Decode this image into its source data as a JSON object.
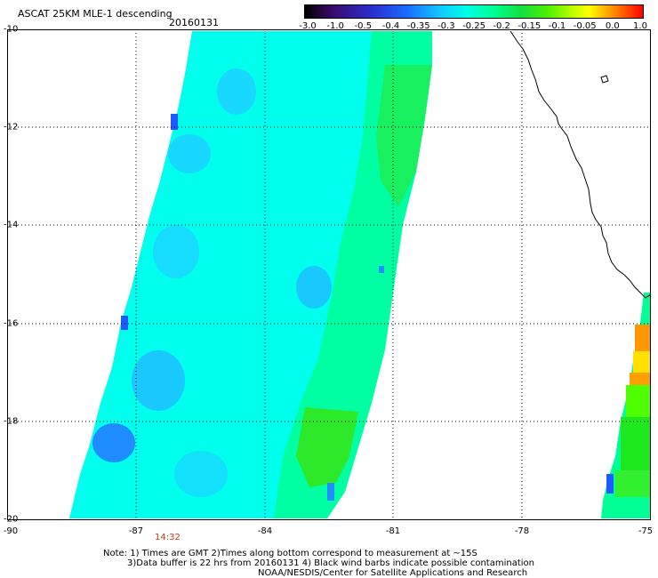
{
  "header": {
    "title": "ASCAT 25KM MLE-1 descending",
    "date": "20160131"
  },
  "color_scale": {
    "labels": [
      "-3.0",
      "-1.0",
      "-0.5",
      "-0.4",
      "-0.35",
      "-0.3",
      "-0.25",
      "-0.2",
      "-0.15",
      "-0.1",
      "-0.05",
      "0.0",
      "1.0"
    ],
    "colors": [
      "#000000",
      "#3a0a6a",
      "#2a2fd0",
      "#1a6aff",
      "#10c8ff",
      "#00ffe8",
      "#00ff90",
      "#10e040",
      "#50f000",
      "#c8ff00",
      "#ffff00",
      "#ffa000",
      "#ff0000"
    ]
  },
  "map": {
    "lat_labels": [
      "-10",
      "-12",
      "-14",
      "-16",
      "-18",
      "-20"
    ],
    "lon_labels": [
      "-90",
      "-87",
      "-84",
      "-81",
      "-78",
      "-75"
    ],
    "swath_colors": {
      "base": "#00ffec",
      "light_blue": "#18d8ff",
      "blue": "#1f8cff",
      "deep_blue": "#1f5aff",
      "green": "#00ff96",
      "bright_green": "#1ee81e",
      "lime": "#50ff00",
      "yellow": "#ffe000",
      "orange": "#ff9800",
      "land_outline": "#000000"
    }
  },
  "time_marker": "14:32",
  "notes": {
    "line1": "Note: 1) Times are GMT 2)Times along bottom correspond to measurement at ~15S",
    "line2": "3)Data buffer is 22 hrs from 20160131 4) Black wind barbs indicate possible contamination",
    "line3": "NOAA/NESDIS/Center for Satellite Applications and Research"
  }
}
